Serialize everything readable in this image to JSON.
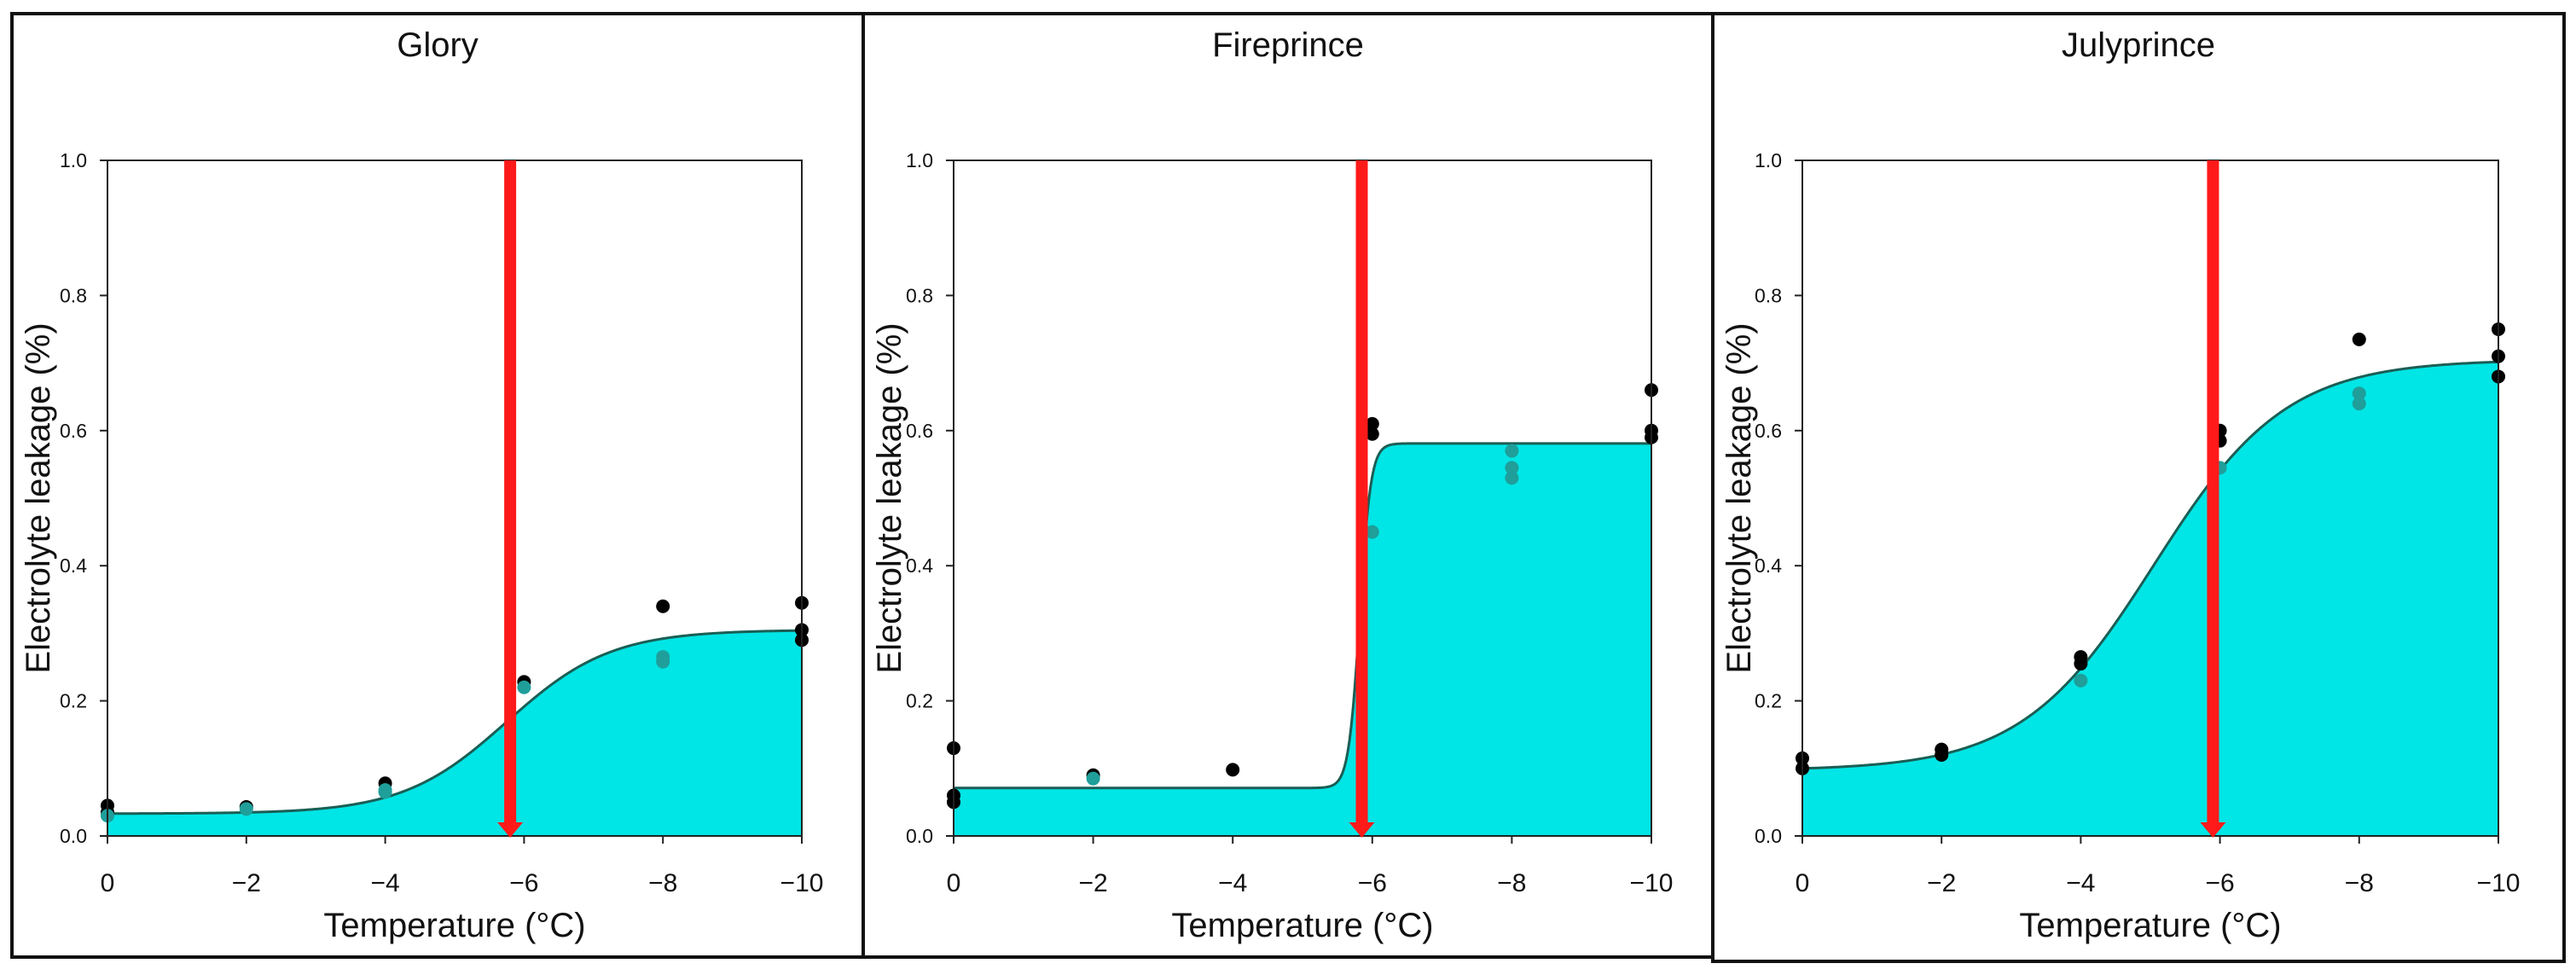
{
  "figure": {
    "shared": {
      "xlabel": "Temperature (°C)",
      "ylabel": "Electrolyte leakage (%)",
      "xlim": [
        0,
        -10
      ],
      "ylim": [
        0,
        1
      ],
      "xticks": [
        0,
        -2,
        -4,
        -6,
        -8,
        -10
      ],
      "xtick_labels": [
        "0",
        "−2",
        "−4",
        "−6",
        "−8",
        "−10"
      ],
      "yticks": [
        0,
        0.2,
        0.4,
        0.6,
        0.8,
        1.0
      ],
      "ytick_labels": [
        "0.0",
        "0.2",
        "0.4",
        "0.6",
        "0.8",
        "1.0"
      ]
    },
    "colors": {
      "fill": "#00e5e5",
      "curve": "#1a5e55",
      "marker_arrow": "#ff1a1a",
      "point_dark": "#000000",
      "point_teal": "#1f9e9a"
    }
  },
  "chart_data": [
    {
      "type": "line",
      "title": "Glory",
      "xlabel": "Temperature (°C)",
      "ylabel": "Electrolyte leakage (%)",
      "xlim": [
        0,
        -10
      ],
      "ylim": [
        0,
        1
      ],
      "curve": {
        "model": "sigmoid",
        "bottom": 0.033,
        "top": 0.305,
        "midpoint": -5.75,
        "slope": 0.75
      },
      "threshold_marker": {
        "x": -5.8,
        "label": ""
      },
      "points": [
        {
          "x": 0,
          "y": 0.045,
          "group": "dark"
        },
        {
          "x": 0,
          "y": 0.035,
          "group": "dark"
        },
        {
          "x": 0,
          "y": 0.03,
          "group": "teal"
        },
        {
          "x": -2,
          "y": 0.043,
          "group": "dark"
        },
        {
          "x": -2,
          "y": 0.04,
          "group": "teal"
        },
        {
          "x": -4,
          "y": 0.078,
          "group": "dark"
        },
        {
          "x": -4,
          "y": 0.068,
          "group": "teal"
        },
        {
          "x": -4,
          "y": 0.065,
          "group": "teal"
        },
        {
          "x": -6,
          "y": 0.228,
          "group": "dark"
        },
        {
          "x": -6,
          "y": 0.22,
          "group": "teal"
        },
        {
          "x": -8,
          "y": 0.34,
          "group": "dark"
        },
        {
          "x": -8,
          "y": 0.265,
          "group": "teal"
        },
        {
          "x": -8,
          "y": 0.258,
          "group": "teal"
        },
        {
          "x": -10,
          "y": 0.345,
          "group": "dark"
        },
        {
          "x": -10,
          "y": 0.305,
          "group": "dark"
        },
        {
          "x": -10,
          "y": 0.29,
          "group": "dark"
        }
      ]
    },
    {
      "type": "line",
      "title": "Fireprince",
      "xlabel": "Temperature (°C)",
      "ylabel": "Electrolyte leakage (%)",
      "xlim": [
        0,
        -10
      ],
      "ylim": [
        0,
        1
      ],
      "curve": {
        "model": "sigmoid",
        "bottom": 0.071,
        "top": 0.581,
        "midpoint": -5.82,
        "slope": 0.08
      },
      "threshold_marker": {
        "x": -5.85,
        "label": ""
      },
      "points": [
        {
          "x": 0,
          "y": 0.13,
          "group": "dark"
        },
        {
          "x": 0,
          "y": 0.06,
          "group": "dark"
        },
        {
          "x": 0,
          "y": 0.05,
          "group": "dark"
        },
        {
          "x": -2,
          "y": 0.09,
          "group": "dark"
        },
        {
          "x": -2,
          "y": 0.085,
          "group": "teal"
        },
        {
          "x": -4,
          "y": 0.098,
          "group": "dark"
        },
        {
          "x": -6,
          "y": 0.61,
          "group": "dark"
        },
        {
          "x": -6,
          "y": 0.595,
          "group": "dark"
        },
        {
          "x": -6,
          "y": 0.45,
          "group": "teal"
        },
        {
          "x": -8,
          "y": 0.57,
          "group": "teal"
        },
        {
          "x": -8,
          "y": 0.545,
          "group": "teal"
        },
        {
          "x": -8,
          "y": 0.53,
          "group": "teal"
        },
        {
          "x": -10,
          "y": 0.66,
          "group": "dark"
        },
        {
          "x": -10,
          "y": 0.6,
          "group": "dark"
        },
        {
          "x": -10,
          "y": 0.59,
          "group": "dark"
        }
      ]
    },
    {
      "type": "line",
      "title": "Julyprince",
      "xlabel": "Temperature (°C)",
      "ylabel": "Electrolyte leakage (%)",
      "xlim": [
        0,
        -10
      ],
      "ylim": [
        0,
        1
      ],
      "curve": {
        "model": "sigmoid",
        "bottom": 0.097,
        "top": 0.705,
        "midpoint": -5.05,
        "slope": 0.95
      },
      "threshold_marker": {
        "x": -5.9,
        "label": ""
      },
      "points": [
        {
          "x": 0,
          "y": 0.115,
          "group": "dark"
        },
        {
          "x": 0,
          "y": 0.1,
          "group": "dark"
        },
        {
          "x": -2,
          "y": 0.128,
          "group": "dark"
        },
        {
          "x": -2,
          "y": 0.12,
          "group": "dark"
        },
        {
          "x": -4,
          "y": 0.265,
          "group": "dark"
        },
        {
          "x": -4,
          "y": 0.255,
          "group": "dark"
        },
        {
          "x": -4,
          "y": 0.23,
          "group": "teal"
        },
        {
          "x": -6,
          "y": 0.6,
          "group": "dark"
        },
        {
          "x": -6,
          "y": 0.585,
          "group": "dark"
        },
        {
          "x": -6,
          "y": 0.545,
          "group": "teal"
        },
        {
          "x": -8,
          "y": 0.735,
          "group": "dark"
        },
        {
          "x": -8,
          "y": 0.655,
          "group": "teal"
        },
        {
          "x": -8,
          "y": 0.64,
          "group": "teal"
        },
        {
          "x": -10,
          "y": 0.75,
          "group": "dark"
        },
        {
          "x": -10,
          "y": 0.71,
          "group": "dark"
        },
        {
          "x": -10,
          "y": 0.68,
          "group": "dark"
        }
      ]
    }
  ]
}
